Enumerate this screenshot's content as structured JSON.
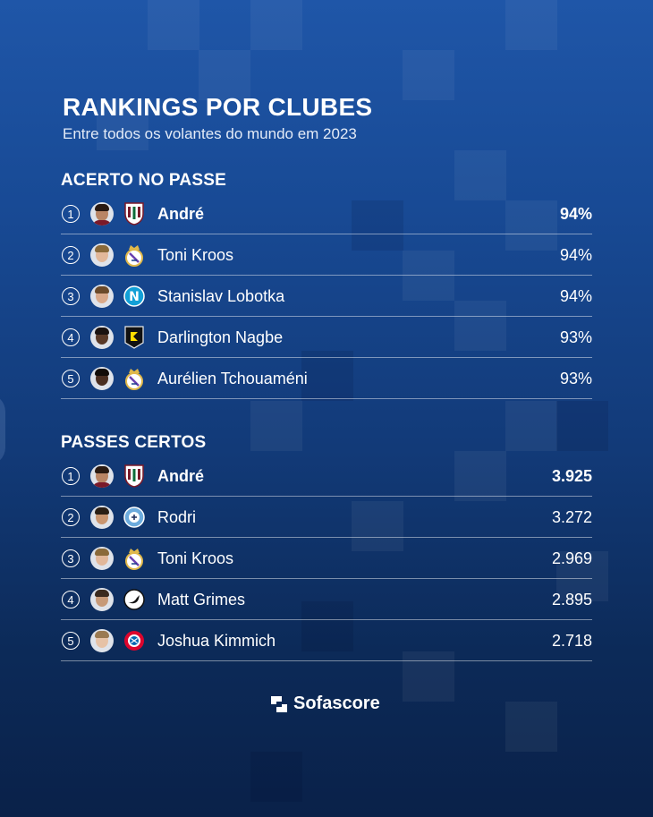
{
  "header": {
    "title": "RANKINGS POR CLUBES",
    "subtitle": "Entre todos os volantes do mundo em 2023"
  },
  "sections": [
    {
      "title": "ACERTO NO PASSE",
      "rows": [
        {
          "rank": "1",
          "name": "André",
          "value": "94%",
          "club": "Fluminense",
          "highlight": true
        },
        {
          "rank": "2",
          "name": "Toni Kroos",
          "value": "94%",
          "club": "Real Madrid",
          "highlight": false
        },
        {
          "rank": "3",
          "name": "Stanislav Lobotka",
          "value": "94%",
          "club": "Napoli",
          "highlight": false
        },
        {
          "rank": "4",
          "name": "Darlington Nagbe",
          "value": "93%",
          "club": "Columbus Crew",
          "highlight": false
        },
        {
          "rank": "5",
          "name": "Aurélien Tchouaméni",
          "value": "93%",
          "club": "Real Madrid",
          "highlight": false
        }
      ]
    },
    {
      "title": "PASSES CERTOS",
      "rows": [
        {
          "rank": "1",
          "name": "André",
          "value": "3.925",
          "club": "Fluminense",
          "highlight": true
        },
        {
          "rank": "2",
          "name": "Rodri",
          "value": "3.272",
          "club": "Manchester City",
          "highlight": false
        },
        {
          "rank": "3",
          "name": "Toni Kroos",
          "value": "2.969",
          "club": "Real Madrid",
          "highlight": false
        },
        {
          "rank": "4",
          "name": "Matt Grimes",
          "value": "2.895",
          "club": "Swansea City",
          "highlight": false
        },
        {
          "rank": "5",
          "name": "Joshua Kimmich",
          "value": "2.718",
          "club": "Bayern Munich",
          "highlight": false
        }
      ]
    }
  ],
  "brand": {
    "name": "Sofascore"
  },
  "colors": {
    "background_top": "#1f56a8",
    "background_bottom": "#0a2149",
    "text": "#ffffff"
  }
}
